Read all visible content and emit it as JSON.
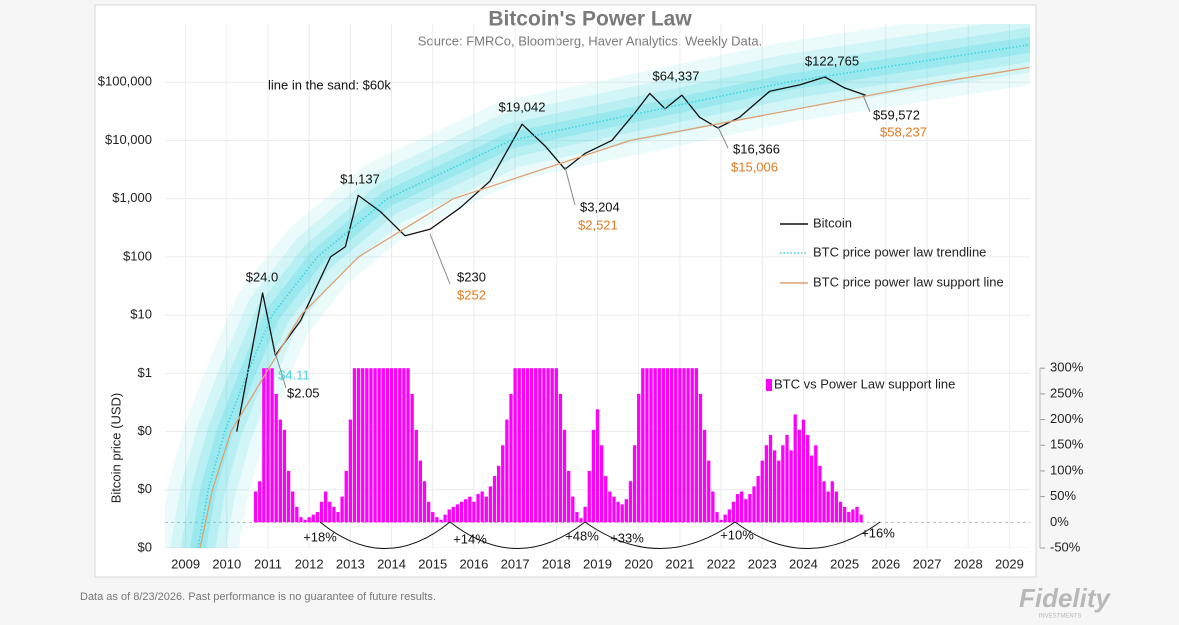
{
  "chart_data": {
    "type": "line",
    "title": "Bitcoin's Power Law",
    "subtitle": "Source: FMRCo, Bloomberg, Haver Analytics. Weekly Data.",
    "y_label": "Bitcoin price (USD)",
    "log_scale": "y",
    "grid": true,
    "xlim": [
      2008.5,
      2029.5
    ],
    "xticks": [
      2009,
      2010,
      2011,
      2012,
      2013,
      2014,
      2015,
      2016,
      2017,
      2018,
      2019,
      2020,
      2021,
      2022,
      2023,
      2024,
      2025,
      2026,
      2027,
      2028,
      2029
    ],
    "ylim": [
      0.001,
      1000000
    ],
    "yticks": [
      {
        "value": 0.001,
        "label": "$0"
      },
      {
        "value": 0.01,
        "label": "$0"
      },
      {
        "value": 0.1,
        "label": "$0"
      },
      {
        "value": 1,
        "label": "$1"
      },
      {
        "value": 10,
        "label": "$10"
      },
      {
        "value": 100,
        "label": "$100"
      },
      {
        "value": 1000,
        "label": "$1,000"
      },
      {
        "value": 10000,
        "label": "$10,000"
      },
      {
        "value": 100000,
        "label": "$100,000"
      }
    ],
    "y2lim": [
      -50,
      970
    ],
    "y2ticks": [
      {
        "value": -50,
        "label": "-50%"
      },
      {
        "value": 0,
        "label": "0%"
      },
      {
        "value": 50,
        "label": "50%"
      },
      {
        "value": 100,
        "label": "100%"
      },
      {
        "value": 150,
        "label": "150%"
      },
      {
        "value": 200,
        "label": "200%"
      },
      {
        "value": 250,
        "label": "250%"
      },
      {
        "value": 300,
        "label": "300%"
      }
    ],
    "series": [
      {
        "name": "Bitcoin",
        "color": "#111111",
        "style": "solid",
        "x": [
          2010.24,
          2010.87,
          2011.18,
          2011.79,
          2012.52,
          2012.88,
          2013.19,
          2013.73,
          2014.33,
          2014.94,
          2015.67,
          2016.39,
          2017.17,
          2017.73,
          2018.21,
          2018.7,
          2019.35,
          2019.91,
          2020.27,
          2020.64,
          2021.05,
          2021.48,
          2021.92,
          2022.45,
          2023.18,
          2023.91,
          2024.52,
          2025.0,
          2025.51
        ],
        "values": [
          0.1,
          24.0,
          2.05,
          8,
          100,
          150,
          1137,
          600,
          230,
          300,
          700,
          2000,
          19042,
          8000,
          3204,
          6000,
          10000,
          30000,
          64337,
          35000,
          60000,
          25000,
          16366,
          25000,
          70000,
          90000,
          122765,
          80000,
          59572
        ]
      },
      {
        "name": "BTC price power law trendline",
        "color": "#3dd6e0",
        "style": "dotted",
        "x": [
          2009.3,
          2009.55,
          2009.95,
          2010.5,
          2011.1,
          2012.2,
          2013.9,
          2016.9,
          2023.6,
          2029.48
        ],
        "values": [
          0.001,
          0.01,
          0.1,
          1,
          10,
          100,
          1000,
          10000,
          100000,
          440000
        ]
      },
      {
        "name": "BTC price power law support line",
        "color": "#e0a070",
        "style": "solid",
        "x": [
          2009.35,
          2009.65,
          2010.1,
          2010.95,
          2011.8,
          2013.2,
          2015.5,
          2019.8,
          2027.3,
          2029.48
        ],
        "values": [
          0.001,
          0.01,
          0.1,
          1,
          10,
          100,
          1000,
          10000,
          100000,
          180000
        ]
      },
      {
        "name": "BTC vs Power Law support line",
        "color": "#ff00ff",
        "type": "bar",
        "axis": "y2",
        "x": [
          2010.7,
          2010.8,
          2010.9,
          2011.0,
          2011.1,
          2011.2,
          2011.3,
          2011.4,
          2011.5,
          2011.6,
          2011.7,
          2011.8,
          2011.9,
          2012.0,
          2012.1,
          2012.2,
          2012.3,
          2012.4,
          2012.5,
          2012.6,
          2012.7,
          2012.8,
          2012.9,
          2013.0,
          2013.1,
          2013.2,
          2013.3,
          2013.4,
          2013.5,
          2013.6,
          2013.7,
          2013.8,
          2013.9,
          2014.0,
          2014.1,
          2014.2,
          2014.3,
          2014.4,
          2014.5,
          2014.6,
          2014.7,
          2014.8,
          2014.9,
          2015.0,
          2015.1,
          2015.2,
          2015.3,
          2015.4,
          2015.5,
          2015.6,
          2015.7,
          2015.8,
          2015.9,
          2016.0,
          2016.1,
          2016.2,
          2016.3,
          2016.4,
          2016.5,
          2016.6,
          2016.7,
          2016.8,
          2016.9,
          2017.0,
          2017.1,
          2017.2,
          2017.3,
          2017.4,
          2017.5,
          2017.6,
          2017.7,
          2017.8,
          2017.9,
          2018.0,
          2018.1,
          2018.2,
          2018.3,
          2018.4,
          2018.5,
          2018.6,
          2018.7,
          2018.8,
          2018.9,
          2019.0,
          2019.1,
          2019.2,
          2019.3,
          2019.4,
          2019.5,
          2019.6,
          2019.7,
          2019.8,
          2019.9,
          2020.0,
          2020.1,
          2020.2,
          2020.3,
          2020.4,
          2020.5,
          2020.6,
          2020.7,
          2020.8,
          2020.9,
          2021.0,
          2021.1,
          2021.2,
          2021.3,
          2021.4,
          2021.5,
          2021.6,
          2021.7,
          2021.8,
          2021.9,
          2022.0,
          2022.1,
          2022.2,
          2022.3,
          2022.4,
          2022.5,
          2022.6,
          2022.7,
          2022.8,
          2022.9,
          2023.0,
          2023.1,
          2023.2,
          2023.3,
          2023.4,
          2023.5,
          2023.6,
          2023.7,
          2023.8,
          2023.9,
          2024.0,
          2024.1,
          2024.2,
          2024.3,
          2024.4,
          2024.5,
          2024.6,
          2024.7,
          2024.8,
          2024.9,
          2025.0,
          2025.1,
          2025.2,
          2025.3,
          2025.4
        ],
        "values": [
          60,
          80,
          300,
          300,
          300,
          250,
          200,
          180,
          100,
          60,
          30,
          10,
          5,
          10,
          15,
          20,
          40,
          60,
          40,
          30,
          20,
          50,
          100,
          200,
          300,
          300,
          300,
          300,
          300,
          300,
          300,
          300,
          300,
          300,
          300,
          300,
          300,
          300,
          250,
          180,
          120,
          80,
          40,
          20,
          10,
          5,
          15,
          25,
          30,
          35,
          40,
          45,
          50,
          40,
          55,
          60,
          50,
          70,
          90,
          110,
          150,
          200,
          250,
          300,
          300,
          300,
          300,
          300,
          300,
          300,
          300,
          300,
          300,
          300,
          250,
          180,
          100,
          50,
          20,
          8,
          30,
          100,
          180,
          220,
          150,
          90,
          60,
          50,
          40,
          35,
          45,
          80,
          150,
          250,
          300,
          300,
          300,
          300,
          300,
          300,
          300,
          300,
          300,
          300,
          300,
          300,
          300,
          300,
          250,
          180,
          120,
          60,
          20,
          5,
          15,
          25,
          40,
          55,
          60,
          45,
          55,
          70,
          90,
          120,
          150,
          170,
          140,
          120,
          150,
          170,
          140,
          210,
          180,
          200,
          170,
          130,
          150,
          110,
          80,
          60,
          80,
          60,
          40,
          30,
          20,
          25,
          30,
          15
        ]
      }
    ],
    "annotations": [
      {
        "text": "line in the sand: $60k",
        "color": "#111111"
      },
      {
        "text": "$24.0",
        "color": "#111111"
      },
      {
        "text": "$1,137",
        "color": "#111111"
      },
      {
        "text": "$19,042",
        "color": "#111111"
      },
      {
        "text": "$64,337",
        "color": "#111111"
      },
      {
        "text": "$122,765",
        "color": "#111111"
      },
      {
        "text": "$59,572",
        "color": "#111111"
      },
      {
        "text": "$58,237",
        "color": "#e07a1f"
      },
      {
        "text": "$16,366",
        "color": "#111111"
      },
      {
        "text": "$15,006",
        "color": "#e07a1f"
      },
      {
        "text": "$3,204",
        "color": "#111111"
      },
      {
        "text": "$2,521",
        "color": "#e07a1f"
      },
      {
        "text": "$230",
        "color": "#111111"
      },
      {
        "text": "$252",
        "color": "#e07a1f"
      },
      {
        "text": "$4.11",
        "color": "#3dd6e0"
      },
      {
        "text": "$2.05",
        "color": "#111111"
      },
      {
        "text": "+18%",
        "color": "#111111"
      },
      {
        "text": "+14%",
        "color": "#111111"
      },
      {
        "text": "+48%",
        "color": "#111111"
      },
      {
        "text": "+33%",
        "color": "#111111"
      },
      {
        "text": "+10%",
        "color": "#111111"
      },
      {
        "text": "+16%",
        "color": "#111111"
      }
    ]
  },
  "footer": {
    "note": "Data as of 8/23/2026. Past performance is no guarantee of future results.",
    "logo": "Fidelity",
    "logo_sub": "INVESTMENTS"
  }
}
